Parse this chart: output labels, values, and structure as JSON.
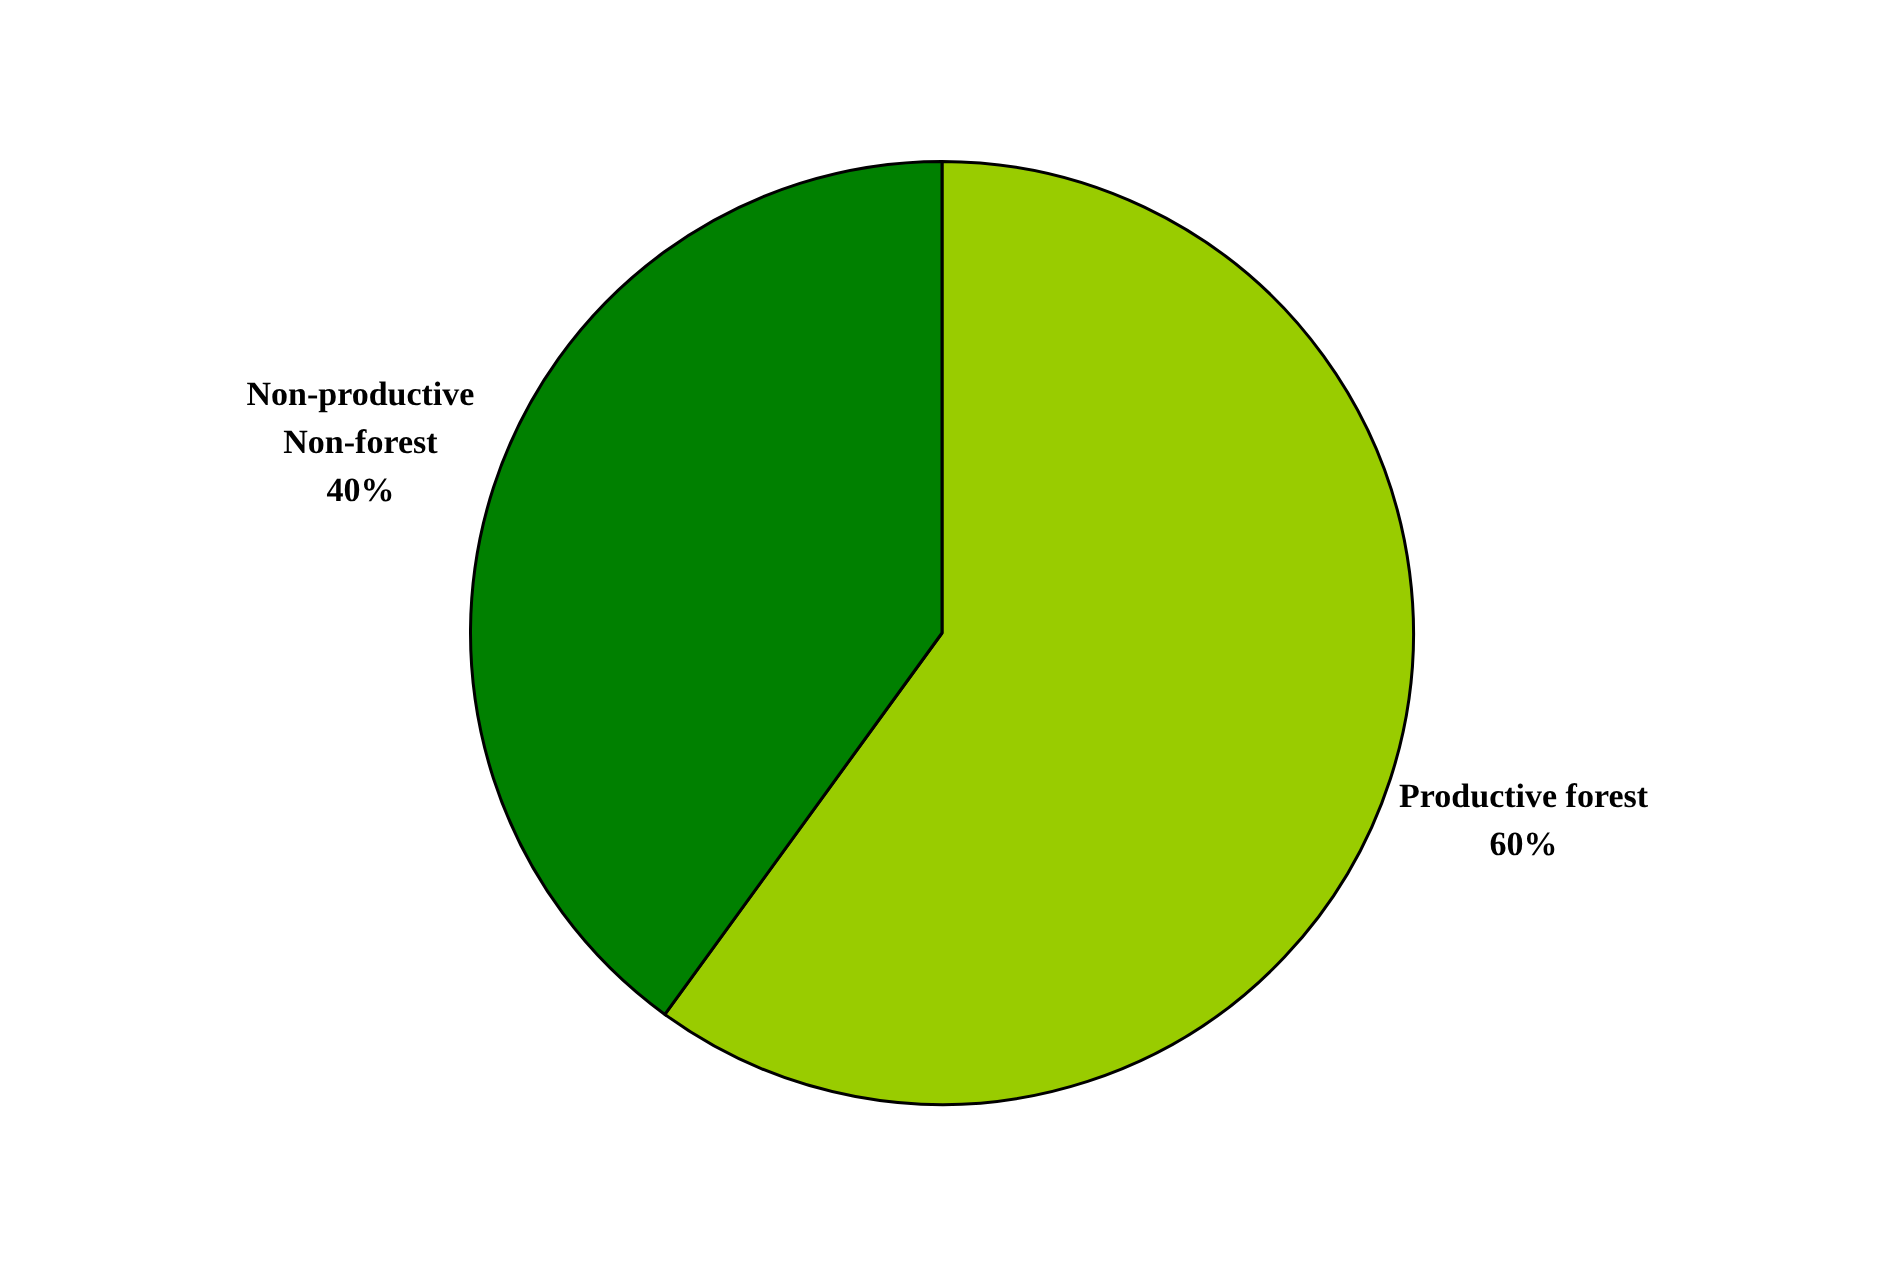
{
  "chart_data": {
    "type": "pie",
    "categories": [
      "Productive forest",
      "Non-productive Non-forest"
    ],
    "values": [
      60,
      40
    ],
    "colors": [
      "#99cc00",
      "#008000"
    ],
    "value_labels": [
      "60%",
      "40%"
    ],
    "legend": false
  }
}
